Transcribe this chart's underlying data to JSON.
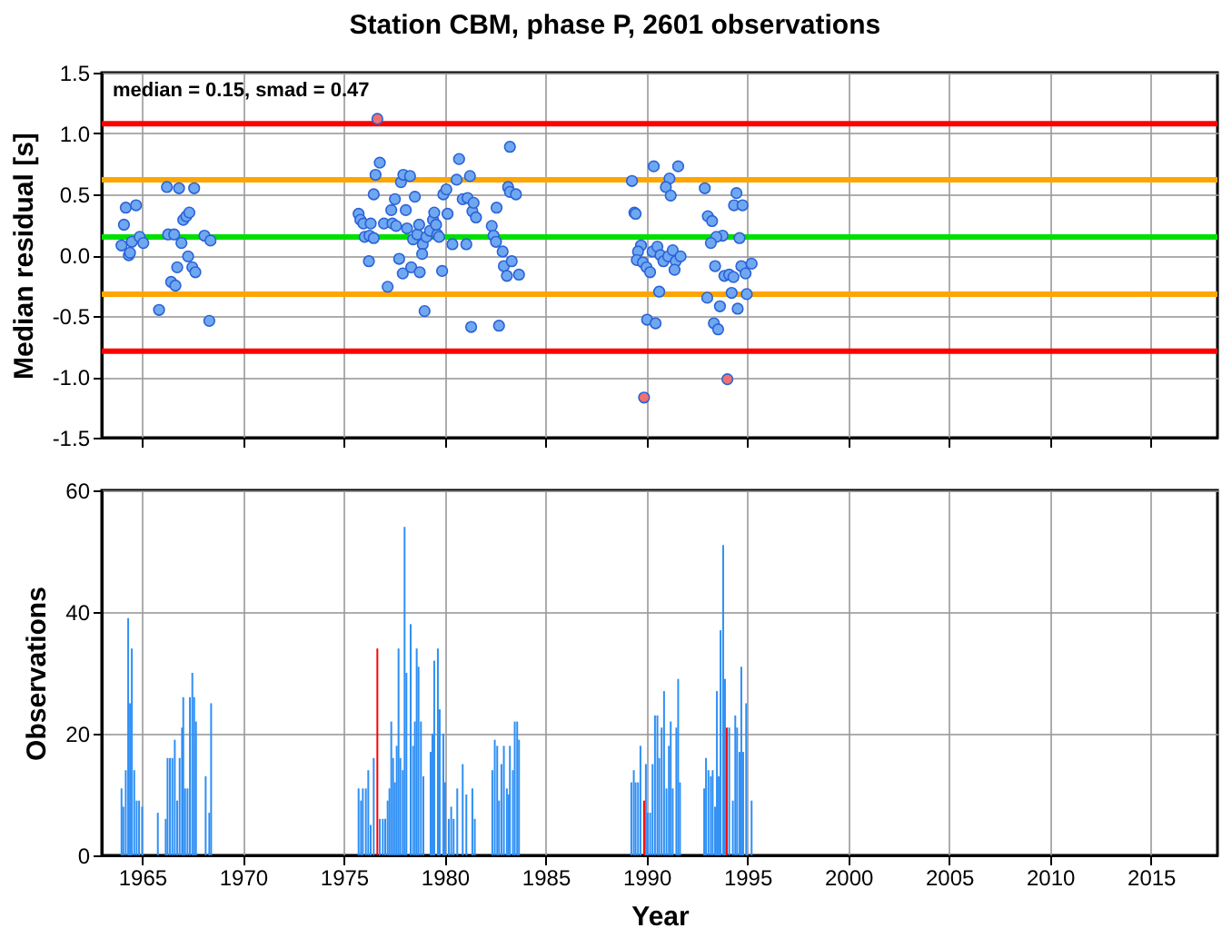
{
  "chart_data": [
    {
      "type": "scatter",
      "title": "Station CBM, phase P, 2601 observations",
      "ylabel": "Median residual [s]",
      "xlim": [
        1963,
        2018.3
      ],
      "xticks": [
        1965,
        1970,
        1975,
        1980,
        1985,
        1990,
        1995,
        2000,
        2005,
        2010,
        2015
      ],
      "ylim": [
        -1.5,
        1.5
      ],
      "yticks": [
        -1.5,
        {
          "value": -1,
          "label": "-1.0"
        },
        -0.5,
        {
          "value": 0,
          "label": "0.0"
        },
        0.5,
        {
          "value": 1,
          "label": "1.0"
        },
        1.5
      ],
      "grid": true,
      "tick_labels": "y",
      "marker": "circle",
      "annotations": [
        "median = 0.15, smad = 0.47"
      ],
      "ref_lines": [
        {
          "axis": "y",
          "value": 1.08,
          "color": "#ff0000"
        },
        {
          "axis": "y",
          "value": 0.62,
          "color": "#ffa500"
        },
        {
          "axis": "y",
          "value": 0.15,
          "color": "#00e000"
        },
        {
          "axis": "y",
          "value": -0.32,
          "color": "#ffa500"
        },
        {
          "axis": "y",
          "value": -0.79,
          "color": "#ff0000"
        }
      ],
      "series": [
        {
          "color": "#6fa8f0",
          "x": [
            1963.98,
            1964.19,
            1964.7,
            1964.1,
            1964.34,
            1964.4,
            1964.49,
            1964.88,
            1965.06,
            1965.84,
            1966.23,
            1966.83,
            1967.58,
            1966.29,
            1966.59,
            1966.74,
            1966.44,
            1966.65,
            1966.95,
            1967.04,
            1967.19,
            1967.34,
            1967.28,
            1967.49,
            1967.64,
            1968.09,
            1968.39,
            1968.33,
            1975.73,
            1975.82,
            1975.97,
            1976.33,
            1976.03,
            1976.27,
            1976.48,
            1976.24,
            1976.48,
            1976.57,
            1976.78,
            1976.99,
            1977.17,
            1977.35,
            1977.41,
            1977.53,
            1977.59,
            1977.74,
            1977.83,
            1977.95,
            1978.07,
            1977.92,
            1978.13,
            1978.28,
            1978.34,
            1978.43,
            1978.52,
            1978.64,
            1978.73,
            1978.76,
            1978.91,
            1979.0,
            1978.88,
            1979.09,
            1979.27,
            1979.42,
            1979.48,
            1979.63,
            1979.72,
            1979.57,
            1979.87,
            1979.93,
            1980.08,
            1980.14,
            1980.38,
            1980.59,
            1980.71,
            1980.89,
            1981.07,
            1981.13,
            1981.25,
            1981.31,
            1981.37,
            1981.43,
            1981.55,
            1982.33,
            1982.42,
            1982.57,
            1982.69,
            1982.54,
            1982.87,
            1982.93,
            1983.08,
            1983.32,
            1983.14,
            1983.23,
            1983.53,
            1983.68,
            1983.23,
            1989.28,
            1989.4,
            1989.46,
            1990.36,
            1991.57,
            1991.14,
            1990.96,
            1991.2,
            1992.89,
            1994.46,
            1994.34,
            1994.76,
            1993.04,
            1993.25,
            1994.61,
            1993.77,
            1993.46,
            1993.19,
            1989.73,
            1989.58,
            1989.52,
            1989.82,
            1990.0,
            1990.18,
            1990.3,
            1990.54,
            1990.69,
            1990.84,
            1991.08,
            1991.3,
            1991.45,
            1991.69,
            1991.39,
            1990.63,
            1990.03,
            1990.45,
            1993.01,
            1993.64,
            1993.34,
            1993.55,
            1994.22,
            1994.52,
            1994.97,
            1993.4,
            1993.86,
            1994.1,
            1994.31,
            1994.7,
            1994.91,
            1995.21
          ],
          "values": [
            0.08,
            0.39,
            0.41,
            0.25,
            0.0,
            0.02,
            0.11,
            0.15,
            0.1,
            -0.45,
            0.56,
            0.55,
            0.55,
            0.17,
            0.17,
            -0.1,
            -0.22,
            -0.25,
            0.1,
            0.29,
            0.32,
            0.35,
            -0.01,
            -0.1,
            -0.14,
            0.16,
            0.12,
            -0.54,
            0.34,
            0.29,
            0.26,
            0.26,
            0.15,
            0.16,
            0.14,
            -0.05,
            0.5,
            0.66,
            0.76,
            0.26,
            -0.26,
            0.37,
            0.26,
            0.46,
            0.24,
            -0.03,
            0.6,
            0.66,
            0.37,
            -0.15,
            0.22,
            0.65,
            -0.1,
            0.13,
            0.48,
            0.17,
            0.25,
            -0.14,
            0.09,
            -0.46,
            0.01,
            0.15,
            0.2,
            0.29,
            0.35,
            0.17,
            0.15,
            0.25,
            -0.13,
            0.5,
            0.54,
            0.34,
            0.09,
            0.62,
            0.79,
            0.46,
            0.09,
            0.47,
            0.65,
            -0.59,
            0.36,
            0.43,
            0.31,
            0.24,
            0.16,
            0.39,
            -0.58,
            0.11,
            0.03,
            -0.09,
            -0.17,
            -0.05,
            0.56,
            0.52,
            0.5,
            -0.16,
            0.89,
            0.61,
            0.35,
            0.34,
            0.73,
            0.73,
            0.63,
            0.56,
            0.49,
            0.55,
            0.51,
            0.41,
            0.41,
            0.32,
            0.28,
            0.14,
            0.16,
            0.15,
            0.1,
            0.08,
            0.03,
            -0.04,
            -0.06,
            -0.1,
            -0.14,
            0.03,
            0.07,
            0.0,
            -0.05,
            -0.01,
            0.04,
            -0.05,
            -0.01,
            -0.12,
            -0.3,
            -0.53,
            -0.56,
            -0.35,
            -0.42,
            -0.56,
            -0.61,
            -0.31,
            -0.44,
            -0.32,
            -0.09,
            -0.17,
            -0.16,
            -0.18,
            -0.09,
            -0.15,
            -0.07
          ]
        },
        {
          "color": "#f07070",
          "x": [
            1976.66,
            1989.88,
            1994.01
          ],
          "values": [
            1.12,
            -1.17,
            -1.02
          ]
        }
      ]
    },
    {
      "type": "bar",
      "xlabel": "Year",
      "ylabel": "Observations",
      "xlim": [
        1963,
        2018.3
      ],
      "xticks": [
        1965,
        1970,
        1975,
        1980,
        1985,
        1990,
        1995,
        2000,
        2005,
        2010,
        2015
      ],
      "ylim": [
        0,
        60
      ],
      "yticks": [
        0,
        20,
        40,
        60
      ],
      "grid": true,
      "series": [
        {
          "color": "#2f8ff5",
          "x": [
            1963.98,
            1964.07,
            1964.19,
            1964.31,
            1964.4,
            1964.49,
            1964.61,
            1964.73,
            1964.85,
            1965.0,
            1965.78,
            1966.17,
            1966.26,
            1966.38,
            1966.5,
            1966.62,
            1966.74,
            1966.86,
            1966.98,
            1967.04,
            1967.13,
            1967.25,
            1967.37,
            1967.49,
            1967.58,
            1967.67,
            1968.15,
            1968.33,
            1968.42,
            1975.73,
            1975.85,
            1975.94,
            1976.09,
            1976.21,
            1976.33,
            1976.48,
            1976.78,
            1976.93,
            1977.05,
            1977.17,
            1977.26,
            1977.35,
            1977.44,
            1977.53,
            1977.62,
            1977.71,
            1977.8,
            1977.92,
            1978.01,
            1978.1,
            1978.31,
            1978.43,
            1978.52,
            1978.61,
            1978.7,
            1978.82,
            1978.94,
            1979.3,
            1979.39,
            1979.48,
            1979.66,
            1979.75,
            1979.93,
            1980.02,
            1980.2,
            1980.32,
            1980.44,
            1980.62,
            1980.89,
            1981.07,
            1981.37,
            1981.49,
            1982.36,
            1982.48,
            1982.6,
            1982.69,
            1982.81,
            1982.93,
            1983.08,
            1983.17,
            1983.23,
            1983.38,
            1983.47,
            1983.59,
            1983.68,
            1989.25,
            1989.37,
            1989.46,
            1989.58,
            1989.7,
            1989.97,
            1990.06,
            1990.18,
            1990.3,
            1990.42,
            1990.54,
            1990.63,
            1990.75,
            1990.87,
            1990.99,
            1991.11,
            1991.2,
            1991.3,
            1991.48,
            1991.57,
            1991.66,
            1992.86,
            1992.95,
            1993.07,
            1993.19,
            1993.28,
            1993.4,
            1993.49,
            1993.58,
            1993.67,
            1993.8,
            1993.89,
            1994.1,
            1994.28,
            1994.4,
            1994.49,
            1994.61,
            1994.7,
            1994.79,
            1994.94,
            1995.21
          ],
          "values": [
            11,
            8,
            14,
            39,
            25,
            34,
            14,
            9,
            9,
            8,
            7,
            6,
            16,
            16,
            16,
            19,
            9,
            16,
            21,
            26,
            11,
            11,
            26,
            30,
            26,
            22,
            13,
            7,
            25,
            11,
            9,
            11,
            11,
            14,
            5,
            16,
            6,
            6,
            6,
            9,
            11,
            22,
            16,
            12,
            18,
            34,
            16,
            14,
            54,
            30,
            38,
            18,
            22,
            34,
            31,
            22,
            13,
            17,
            20,
            32,
            34,
            24,
            20,
            12,
            6,
            8,
            6,
            11,
            15,
            10,
            11,
            6,
            14,
            19,
            18,
            9,
            15,
            18,
            11,
            10,
            18,
            14,
            22,
            22,
            19,
            12,
            14,
            12,
            12,
            18,
            15,
            7,
            7,
            15,
            23,
            23,
            16,
            21,
            27,
            11,
            18,
            22,
            11,
            21,
            29,
            12,
            11,
            16,
            14,
            13,
            14,
            8,
            27,
            13,
            37,
            51,
            29,
            21,
            9,
            23,
            21,
            17,
            31,
            17,
            25,
            9
          ]
        },
        {
          "color": "#ff0000",
          "x": [
            1976.66,
            1989.88,
            1993.98
          ],
          "values": [
            34,
            9,
            21
          ]
        }
      ]
    }
  ]
}
